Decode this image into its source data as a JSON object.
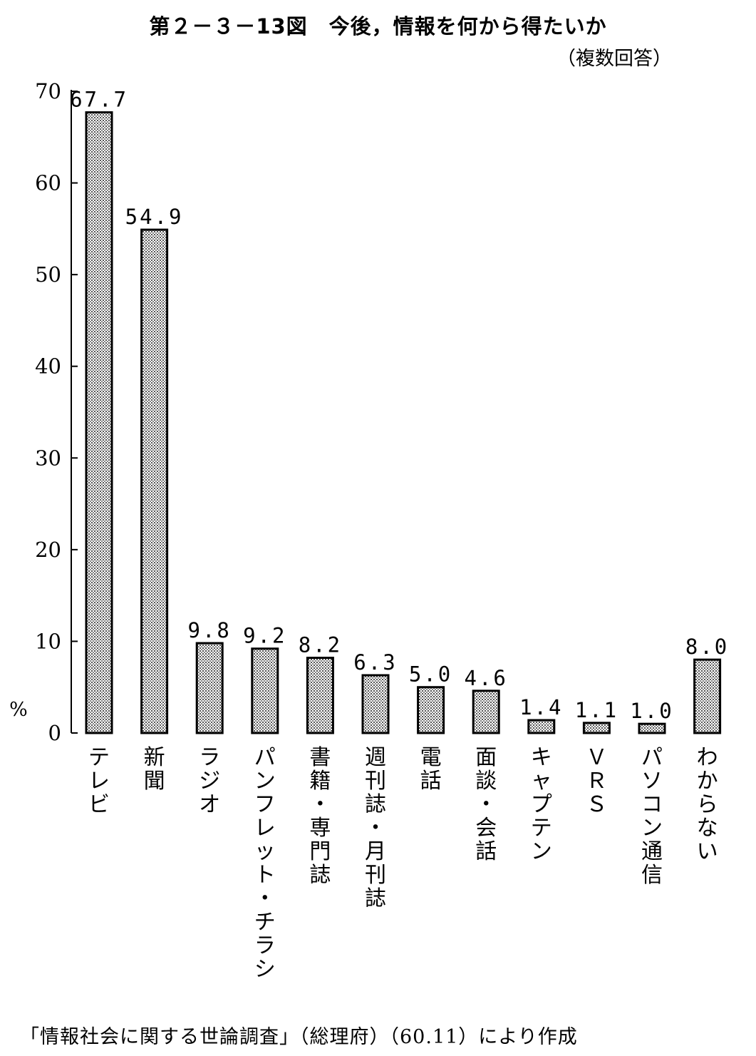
{
  "title": "第２－３－13図　今後，情報を何から得たいか",
  "subtitle": "（複数回答）",
  "source": "「情報社会に関する世論調査」（総理府）（60.11）により作成",
  "chart_data": {
    "type": "bar",
    "ylabel": "%",
    "ylim": [
      0,
      70
    ],
    "yticks": [
      0,
      10,
      20,
      30,
      40,
      50,
      60,
      70
    ],
    "grid": false,
    "categories": [
      "テレビ",
      "新聞",
      "ラジオ",
      "パンフレット・チラシ",
      "書籍・専門誌",
      "週刊誌・月刊誌",
      "電話",
      "面談・会話",
      "キャプテン",
      "ＶＲＳ",
      "パソコン通信",
      "わからない"
    ],
    "values": [
      67.7,
      54.9,
      9.8,
      9.2,
      8.2,
      6.3,
      5.0,
      4.6,
      1.4,
      1.1,
      1.0,
      8.0
    ],
    "value_labels": [
      "67.7",
      "54.9",
      "9.8",
      "9.2",
      "8.2",
      "6.3",
      "5.0",
      "4.6",
      "1.4",
      "1.1",
      "1.0",
      "8.0"
    ],
    "bar_fill": "#c8c8c8",
    "bar_stroke": "#000000"
  }
}
